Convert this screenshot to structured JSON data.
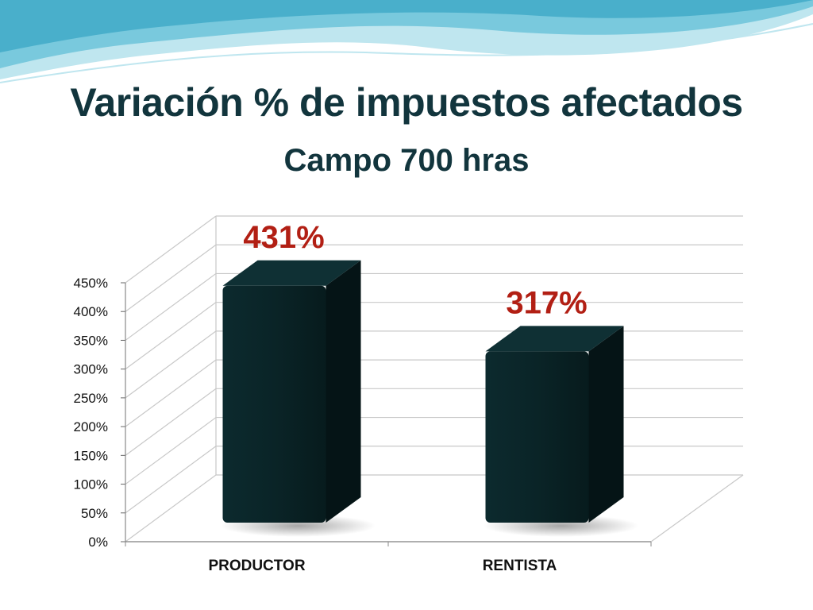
{
  "slide": {
    "title": "Variación % de impuestos afectados",
    "subtitle": "Campo 700 hras"
  },
  "colors": {
    "title": "#12353d",
    "bar_front": "#0a2427",
    "bar_side": "#051416",
    "bar_top": "#0f3034",
    "value_label": "#b21f14",
    "gridline": "#c8c8c8",
    "wave_light": "#bfe6ef",
    "wave_mid": "#6cc3d9",
    "wave_dark": "#2a9fc0"
  },
  "chart_data": {
    "type": "bar",
    "style": "3d-column",
    "title": "",
    "xlabel": "",
    "ylabel": "",
    "categories": [
      "PRODUCTOR",
      "RENTISTA"
    ],
    "values": [
      431,
      317
    ],
    "value_labels": [
      "431%",
      "317%"
    ],
    "ylim": [
      0,
      450
    ],
    "yticks": [
      0,
      50,
      100,
      150,
      200,
      250,
      300,
      350,
      400,
      450
    ],
    "ytick_labels": [
      "0%",
      "50%",
      "100%",
      "150%",
      "200%",
      "250%",
      "300%",
      "350%",
      "400%",
      "450%"
    ],
    "grid": true,
    "legend": "none"
  }
}
